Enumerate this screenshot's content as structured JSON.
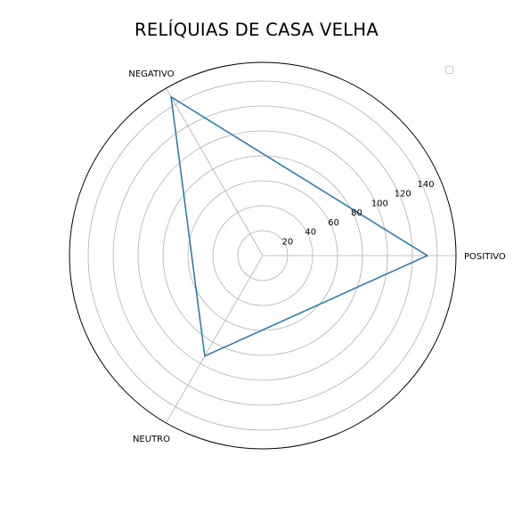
{
  "chart_data": {
    "type": "radar",
    "title": "RELÍQUIAS DE CASA VELHA",
    "categories": [
      "POSITIVO",
      "NEGATIVO",
      "NEUTRO"
    ],
    "series": [
      {
        "values": [
          132,
          147,
          93
        ],
        "color": "#1f77b4"
      }
    ],
    "radial_ticks": [
      20,
      40,
      60,
      80,
      100,
      120,
      140
    ],
    "rlim": [
      0,
      155
    ],
    "grid": true,
    "legend": "top-right (empty)",
    "grid_color": "#b0b0b0",
    "outline_color": "#000000"
  }
}
